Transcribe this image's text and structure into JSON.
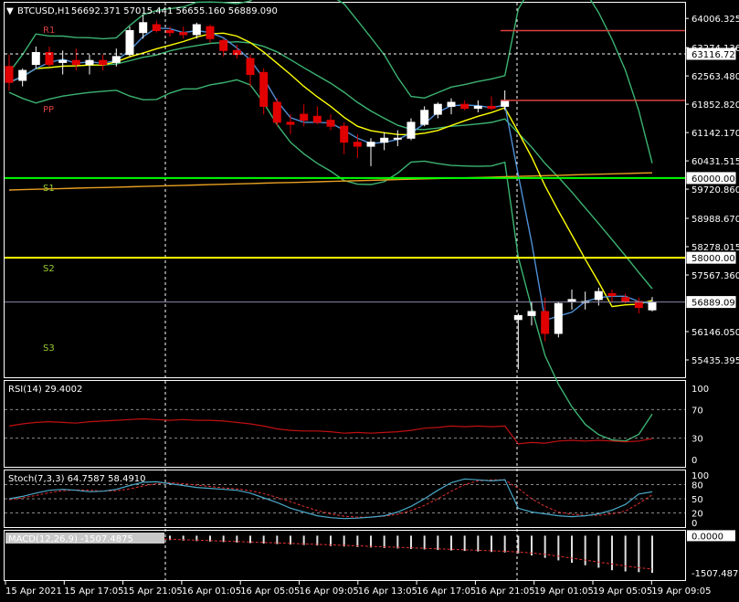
{
  "header": {
    "symbol": "BTCUSD,H1",
    "ohlc": "56692.371 57015.441 56655.160 56889.090"
  },
  "colors": {
    "bg": "#000000",
    "frame": "#ffffff",
    "bull": "#ffffff",
    "bear": "#e00000",
    "ma_fast": "#4f8fd6",
    "ma_slow": "#ffff00",
    "bands": "#3cb371",
    "ma200": "#e8a020",
    "pivot_red": "#d84040",
    "rsi_line": "#c01010",
    "stoch_main": "#4aa8c8",
    "stoch_signal": "#e03030",
    "level_s1": "#00ff00",
    "level_s2": "#ffff00"
  },
  "labels": {
    "r1": "R1",
    "pp": "PP",
    "s1": "S1",
    "s2": "S2",
    "s3": "S3"
  },
  "chart_data": [
    {
      "type": "candlestick",
      "title": "BTCUSD,H1",
      "ylim": [
        55000,
        64400
      ],
      "price_axis_ticks": [
        "64006.325",
        "63274.136",
        "62563.480",
        "61852.820",
        "61142.170",
        "60431.515",
        "59720.860",
        "58988.670",
        "58278.015",
        "57567.360",
        "56146.050",
        "55435.395"
      ],
      "price_tags": [
        {
          "value": "63116.723",
          "style": "boxed"
        },
        {
          "value": "60000.000",
          "style": "boxed"
        },
        {
          "value": "58000.000",
          "style": "boxed"
        },
        {
          "value": "56889.090",
          "style": "current"
        }
      ],
      "time_axis": [
        "15 Apr 2021",
        "15 Apr 17:05",
        "15 Apr 21:05",
        "16 Apr 01:05",
        "16 Apr 05:05",
        "16 Apr 09:05",
        "16 Apr 13:05",
        "16 Apr 17:05",
        "16 Apr 21:05",
        "19 Apr 01:05",
        "19 Apr 05:05",
        "19 Apr 09:05"
      ],
      "candles": [
        {
          "o": 62800,
          "h": 63100,
          "l": 62200,
          "c": 62400
        },
        {
          "o": 62450,
          "h": 62750,
          "l": 62300,
          "c": 62700
        },
        {
          "o": 62850,
          "h": 63300,
          "l": 62750,
          "c": 63150
        },
        {
          "o": 63150,
          "h": 63300,
          "l": 62800,
          "c": 62850
        },
        {
          "o": 62900,
          "h": 63200,
          "l": 62600,
          "c": 62950
        },
        {
          "o": 62950,
          "h": 63250,
          "l": 62700,
          "c": 62850
        },
        {
          "o": 62850,
          "h": 63100,
          "l": 62600,
          "c": 62950
        },
        {
          "o": 62950,
          "h": 63100,
          "l": 62700,
          "c": 62850
        },
        {
          "o": 62900,
          "h": 63250,
          "l": 62800,
          "c": 63050
        },
        {
          "o": 63100,
          "h": 63800,
          "l": 63050,
          "c": 63700
        },
        {
          "o": 63650,
          "h": 64100,
          "l": 63500,
          "c": 63900
        },
        {
          "o": 63850,
          "h": 63950,
          "l": 63650,
          "c": 63700
        },
        {
          "o": 63700,
          "h": 63800,
          "l": 63550,
          "c": 63650
        },
        {
          "o": 63650,
          "h": 63800,
          "l": 63500,
          "c": 63600
        },
        {
          "o": 63600,
          "h": 63900,
          "l": 63500,
          "c": 63850
        },
        {
          "o": 63800,
          "h": 63850,
          "l": 63400,
          "c": 63500
        },
        {
          "o": 63450,
          "h": 63500,
          "l": 63050,
          "c": 63200
        },
        {
          "o": 63200,
          "h": 63350,
          "l": 63000,
          "c": 63100
        },
        {
          "o": 63000,
          "h": 63100,
          "l": 62300,
          "c": 62600
        },
        {
          "o": 62650,
          "h": 62750,
          "l": 61600,
          "c": 61800
        },
        {
          "o": 61900,
          "h": 62000,
          "l": 61300,
          "c": 61400
        },
        {
          "o": 61400,
          "h": 61600,
          "l": 61100,
          "c": 61350
        },
        {
          "o": 61600,
          "h": 61850,
          "l": 61300,
          "c": 61450
        },
        {
          "o": 61550,
          "h": 61800,
          "l": 61350,
          "c": 61400
        },
        {
          "o": 61450,
          "h": 61600,
          "l": 61200,
          "c": 61300
        },
        {
          "o": 61300,
          "h": 61400,
          "l": 60600,
          "c": 60900
        },
        {
          "o": 60900,
          "h": 61100,
          "l": 60500,
          "c": 60800
        },
        {
          "o": 60800,
          "h": 61000,
          "l": 60300,
          "c": 60900
        },
        {
          "o": 60900,
          "h": 61150,
          "l": 60700,
          "c": 61000
        },
        {
          "o": 61000,
          "h": 61200,
          "l": 60800,
          "c": 61000
        },
        {
          "o": 61000,
          "h": 61500,
          "l": 60950,
          "c": 61400
        },
        {
          "o": 61350,
          "h": 61800,
          "l": 61300,
          "c": 61700
        },
        {
          "o": 61600,
          "h": 61900,
          "l": 61500,
          "c": 61850
        },
        {
          "o": 61800,
          "h": 62000,
          "l": 61600,
          "c": 61900
        },
        {
          "o": 61850,
          "h": 61950,
          "l": 61700,
          "c": 61750
        },
        {
          "o": 61750,
          "h": 61950,
          "l": 61650,
          "c": 61800
        },
        {
          "o": 61800,
          "h": 62050,
          "l": 61700,
          "c": 61750
        },
        {
          "o": 61800,
          "h": 62200,
          "l": 61700,
          "c": 61950
        },
        {
          "o": 56450,
          "h": 56600,
          "l": 55200,
          "c": 56550
        },
        {
          "o": 56550,
          "h": 56900,
          "l": 56300,
          "c": 56650
        },
        {
          "o": 56650,
          "h": 57000,
          "l": 55900,
          "c": 56100
        },
        {
          "o": 56100,
          "h": 56900,
          "l": 56000,
          "c": 56850
        },
        {
          "o": 56900,
          "h": 57200,
          "l": 56700,
          "c": 56950
        },
        {
          "o": 56900,
          "h": 57150,
          "l": 56700,
          "c": 56900
        },
        {
          "o": 56950,
          "h": 57250,
          "l": 56800,
          "c": 57150
        },
        {
          "o": 57100,
          "h": 57200,
          "l": 56900,
          "c": 57050
        },
        {
          "o": 57000,
          "h": 57100,
          "l": 56850,
          "c": 56900
        },
        {
          "o": 56900,
          "h": 57000,
          "l": 56600,
          "c": 56750
        },
        {
          "o": 56692,
          "h": 57015,
          "l": 56655,
          "c": 56889
        }
      ]
    },
    {
      "type": "line",
      "title": "RSI(14) 29.4002",
      "ylim": [
        -10,
        110
      ],
      "ticks": [
        "100",
        "70",
        "30",
        "0"
      ],
      "levels": [
        70,
        30
      ],
      "values": [
        47,
        50,
        52,
        53,
        52,
        51,
        53,
        54,
        55,
        56,
        57,
        56,
        55,
        56,
        55,
        55,
        54,
        52,
        50,
        47,
        43,
        41,
        40,
        40,
        39,
        37,
        38,
        37,
        38,
        39,
        41,
        44,
        45,
        47,
        46,
        47,
        46,
        47,
        22,
        24,
        23,
        26,
        27,
        26,
        27,
        26,
        25,
        26,
        29.4
      ]
    },
    {
      "type": "line",
      "title": "Stoch(7,3,3) 64.7587 58.4910",
      "ylim": [
        -10,
        110
      ],
      "ticks": [
        "100",
        "80",
        "50",
        "20",
        "0"
      ],
      "levels": [
        80,
        50,
        20
      ],
      "series": [
        {
          "values": [
            50,
            55,
            62,
            68,
            70,
            68,
            65,
            66,
            70,
            78,
            85,
            86,
            82,
            78,
            74,
            72,
            70,
            68,
            62,
            52,
            42,
            30,
            22,
            14,
            10,
            8,
            9,
            11,
            14,
            22,
            34,
            50,
            68,
            84,
            92,
            90,
            88,
            90,
            30,
            22,
            18,
            14,
            12,
            14,
            18,
            26,
            38,
            60,
            64.76
          ]
        },
        {
          "values": [
            48,
            52,
            57,
            63,
            67,
            69,
            68,
            66,
            67,
            71,
            77,
            82,
            84,
            82,
            79,
            76,
            73,
            71,
            67,
            61,
            53,
            44,
            34,
            25,
            18,
            13,
            11,
            11,
            13,
            17,
            25,
            36,
            50,
            66,
            80,
            88,
            90,
            90,
            72,
            50,
            34,
            22,
            17,
            15,
            15,
            18,
            24,
            40,
            58.49
          ]
        }
      ]
    },
    {
      "type": "bar",
      "title": "MACD(12,26,9) -1507.4875",
      "ylim": [
        -1800,
        200
      ],
      "ticks": [
        "0.0000",
        "-1507.4875"
      ],
      "values": [
        -5,
        -10,
        -15,
        -20,
        -30,
        -45,
        -60,
        -80,
        -100,
        -120,
        -140,
        -160,
        -180,
        -200,
        -220,
        -240,
        -260,
        -280,
        -300,
        -320,
        -340,
        -360,
        -380,
        -400,
        -420,
        -440,
        -460,
        -480,
        -500,
        -520,
        -540,
        -560,
        -580,
        -600,
        -620,
        -640,
        -660,
        -680,
        -720,
        -800,
        -900,
        -1000,
        -1100,
        -1200,
        -1300,
        -1400,
        -1450,
        -1480,
        -1507.49
      ],
      "signal": [
        -5,
        -10,
        -15,
        -22,
        -30,
        -40,
        -52,
        -66,
        -80,
        -96,
        -112,
        -128,
        -146,
        -164,
        -182,
        -200,
        -218,
        -236,
        -255,
        -274,
        -292,
        -312,
        -332,
        -352,
        -372,
        -392,
        -412,
        -432,
        -452,
        -472,
        -492,
        -512,
        -532,
        -552,
        -572,
        -592,
        -612,
        -632,
        -660,
        -700,
        -760,
        -830,
        -910,
        -990,
        -1070,
        -1150,
        -1230,
        -1300,
        -1350
      ]
    }
  ]
}
